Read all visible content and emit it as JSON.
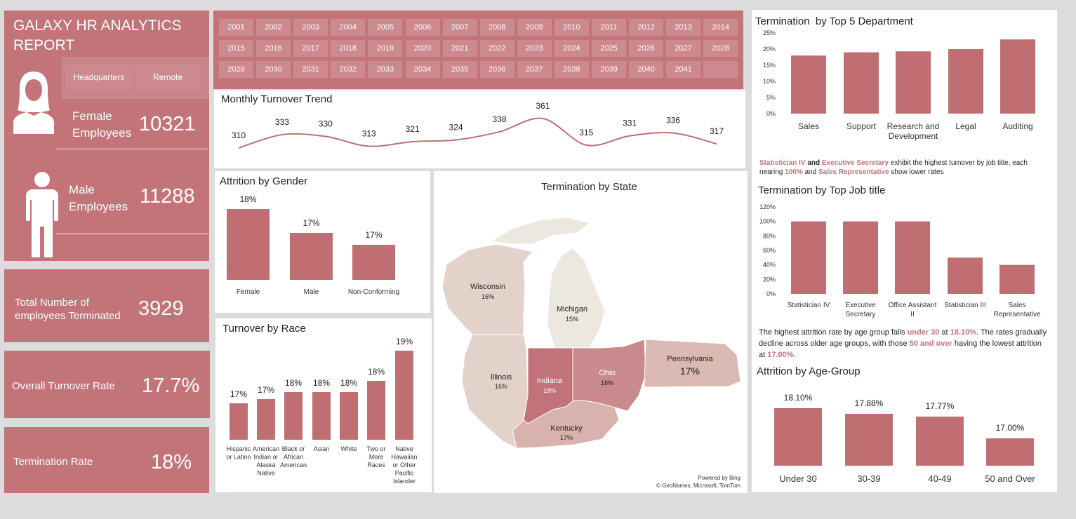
{
  "report": {
    "title": "GALAXY HR ANALYTICS REPORT",
    "filters": [
      "Headquarters",
      "Remote"
    ]
  },
  "kpis": {
    "female_label": "Female Employees",
    "female_value": "10321",
    "male_label": "Male Employees",
    "male_value": "11288",
    "terminated_label": "Total Number of employees Terminated",
    "terminated_value": "3929",
    "turnover_label": "Overall Turnover Rate",
    "turnover_value": "17.7%",
    "termination_label": "Termination Rate",
    "termination_value": "18%"
  },
  "years": [
    "2001",
    "2002",
    "2003",
    "2004",
    "2005",
    "2006",
    "2007",
    "2008",
    "2009",
    "2010",
    "2011",
    "2012",
    "2013",
    "2014",
    "2015",
    "2016",
    "2017",
    "2018",
    "2019",
    "2020",
    "2021",
    "2022",
    "2023",
    "2024",
    "2025",
    "2026",
    "2027",
    "2028",
    "2029",
    "2030",
    "2031",
    "2032",
    "2033",
    "2034",
    "2035",
    "2036",
    "2037",
    "2038",
    "2039",
    "2040",
    "2041",
    ""
  ],
  "state_map": {
    "title": "Termination by State",
    "states": [
      {
        "name": "Wisconsin",
        "pct": "16%",
        "color": "#e2d2ca"
      },
      {
        "name": "Michigan",
        "pct": "15%",
        "color": "#ede8df"
      },
      {
        "name": "Illinois",
        "pct": "16%",
        "color": "#e2d2ca"
      },
      {
        "name": "Indiana",
        "pct": "18%",
        "color": "#c2737a"
      },
      {
        "name": "Ohio",
        "pct": "18%",
        "color": "#c98a8d"
      },
      {
        "name": "Kentucky",
        "pct": "17%",
        "color": "#d9b1ad"
      },
      {
        "name": "Pennsylvania",
        "pct": "17%",
        "color": "#dbbab3"
      }
    ],
    "credit1": "Powered by Bing",
    "credit2": "© GeoNames, Microsoft, TomTom"
  },
  "insights": {
    "jobtitle": {
      "a": "Statistician IV",
      "b": " and ",
      "c": "Executive Secretary",
      "d": " exhibit the highest turnover by job title, each nearing ",
      "e": "100%",
      "f": " and  ",
      "g": "Sales Representative",
      "h": " show  lower rates"
    },
    "age": {
      "a": "The highest attrition rate by age group  falls  ",
      "b": "under 30",
      "c": " at ",
      "d": "18.10%",
      "e": ". The rates gradually decline across older age groups, with those ",
      "f": "50 and over",
      "g": " having the lowest attrition at ",
      "h": "17.00%",
      "i": "."
    }
  },
  "chart_data": [
    {
      "id": "monthly",
      "type": "line",
      "title": "Monthly Turnover Trend",
      "values": [
        310,
        333,
        330,
        313,
        321,
        324,
        338,
        361,
        315,
        331,
        336,
        317
      ]
    },
    {
      "id": "gender",
      "type": "bar",
      "title": "Attrition by Gender",
      "categories": [
        "Female",
        "Male",
        "Non-Conforming"
      ],
      "values": [
        18,
        17,
        17
      ],
      "labels": [
        "18%",
        "17%",
        "17%"
      ]
    },
    {
      "id": "race",
      "type": "bar",
      "title": "Turnover by Race",
      "categories": [
        [
          "Hispanic",
          "or Latino"
        ],
        [
          "American",
          "Indian or",
          "Alaska",
          "Native"
        ],
        [
          "Black or",
          "African",
          "American"
        ],
        [
          "Asian"
        ],
        [
          "White"
        ],
        [
          "Two or",
          "More",
          "Races"
        ],
        [
          "Native",
          "Hawaiian",
          "or Other",
          "Pacific",
          "Islander"
        ]
      ],
      "values": [
        17,
        17,
        18,
        18,
        18,
        18,
        19
      ],
      "labels": [
        "17%",
        "17%",
        "18%",
        "18%",
        "18%",
        "18%",
        "19%"
      ]
    },
    {
      "id": "dept",
      "type": "bar",
      "title": "Termination  by Top 5 Department",
      "categories": [
        [
          "Sales"
        ],
        [
          "Support"
        ],
        [
          "Research and",
          "Development"
        ],
        [
          "Legal"
        ],
        [
          "Auditing"
        ]
      ],
      "values": [
        18,
        19,
        19.3,
        20,
        23
      ],
      "ylim": [
        0,
        25
      ],
      "yticks": [
        "0%",
        "5%",
        "10%",
        "15%",
        "20%",
        "25%"
      ]
    },
    {
      "id": "job",
      "type": "bar",
      "title": "Termination by Top Job title",
      "categories": [
        [
          "Statistician IV"
        ],
        [
          "Executive",
          "Secretary"
        ],
        [
          "Office Assistant",
          "II"
        ],
        [
          "Statistician III"
        ],
        [
          "Sales",
          "Representative"
        ]
      ],
      "values": [
        100,
        100,
        100,
        50,
        40
      ],
      "ylim": [
        0,
        120
      ],
      "yticks": [
        "0%",
        "20%",
        "40%",
        "60%",
        "80%",
        "100%",
        "120%"
      ]
    },
    {
      "id": "age",
      "type": "bar",
      "title": "Attrition by Age-Group",
      "categories": [
        "Under 30",
        "30-39",
        "40-49",
        "50 and Over"
      ],
      "values": [
        18.1,
        17.88,
        17.77,
        17.0
      ],
      "labels": [
        "18.10%",
        "17.88%",
        "17.77%",
        "17.00%"
      ]
    }
  ]
}
